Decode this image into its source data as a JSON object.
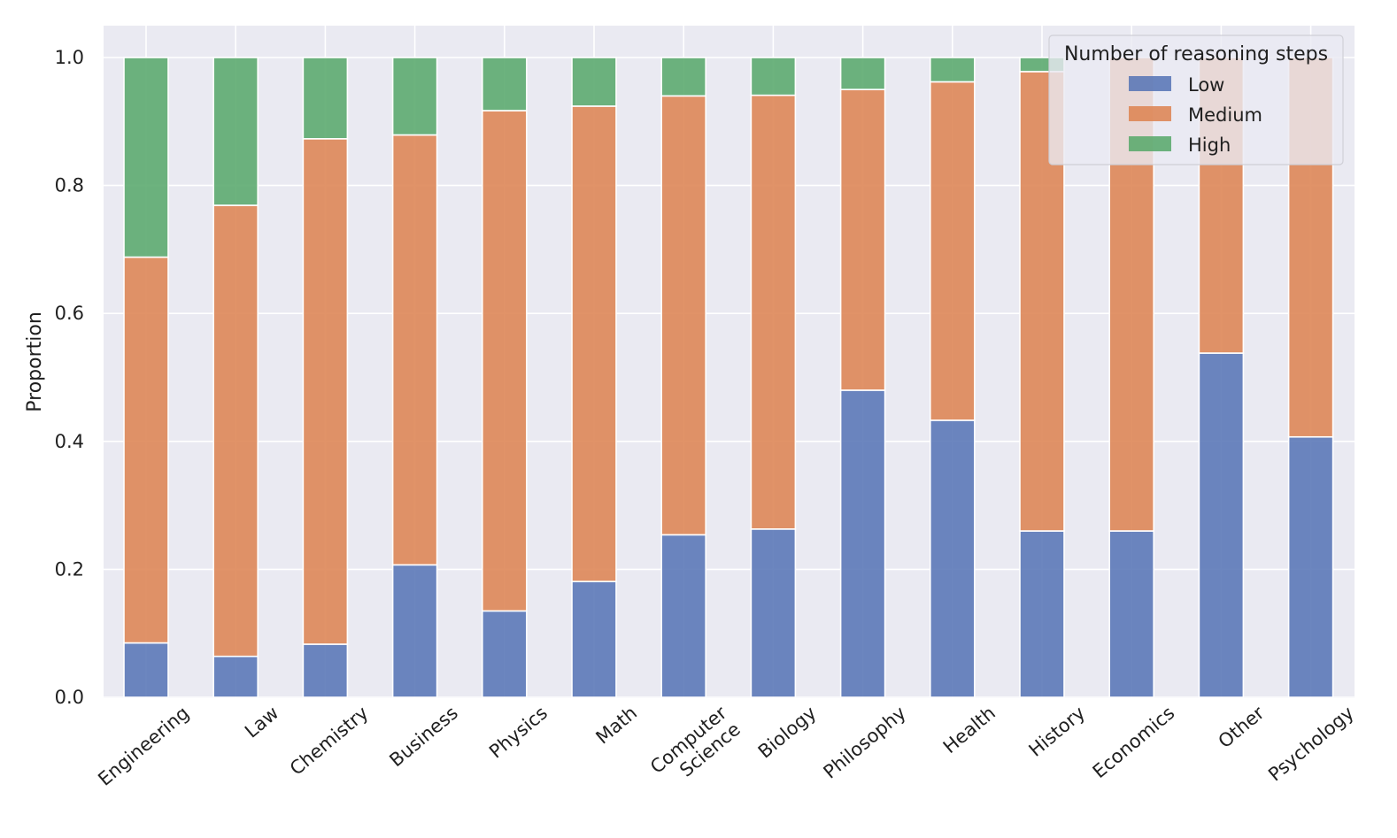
{
  "chart_data": {
    "type": "bar",
    "stacked": true,
    "title": "",
    "xlabel": "",
    "ylabel": "Proportion",
    "ylim": [
      0,
      1.05
    ],
    "yticks": [
      "0.0",
      "0.2",
      "0.4",
      "0.6",
      "0.8",
      "1.0"
    ],
    "grid": true,
    "categories": [
      "Engineering",
      "Law",
      "Chemistry",
      "Business",
      "Physics",
      "Math",
      "Computer Science",
      "Biology",
      "Philosophy",
      "Health",
      "History",
      "Economics",
      "Other",
      "Psychology"
    ],
    "series": [
      {
        "name": "Low",
        "color": "#5875b6",
        "values": [
          0.085,
          0.064,
          0.083,
          0.207,
          0.135,
          0.181,
          0.254,
          0.263,
          0.48,
          0.433,
          0.26,
          0.26,
          0.538,
          0.407
        ]
      },
      {
        "name": "Medium",
        "color": "#dd8453",
        "values": [
          0.603,
          0.705,
          0.79,
          0.672,
          0.782,
          0.743,
          0.686,
          0.678,
          0.47,
          0.529,
          0.718,
          0.74,
          0.462,
          0.593
        ]
      },
      {
        "name": "High",
        "color": "#59a96c",
        "values": [
          0.312,
          0.231,
          0.127,
          0.121,
          0.083,
          0.076,
          0.06,
          0.059,
          0.05,
          0.038,
          0.022,
          0.0,
          0.0,
          0.0
        ]
      }
    ],
    "legend": {
      "title": "Number of reasoning steps",
      "position": "top-right"
    }
  }
}
